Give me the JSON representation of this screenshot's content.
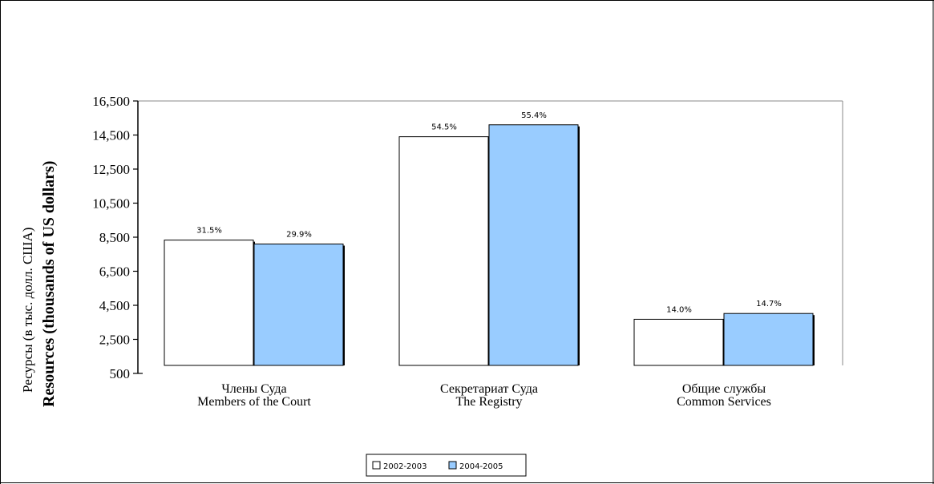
{
  "chart_data": {
    "type": "bar",
    "title": "",
    "ylabel_ru": "Ресурсы (в тыс. долл. США)",
    "ylabel_en": "Resources (thousands of US dollars)",
    "ylim": [
      500,
      16500
    ],
    "yticks": [
      500,
      2500,
      4500,
      6500,
      8500,
      10500,
      12500,
      14500,
      16500
    ],
    "ytick_labels": [
      "500",
      "2,500",
      "4,500",
      "6,500",
      "8,500",
      "10,500",
      "12,500",
      "14,500",
      "16,500"
    ],
    "categories": [
      {
        "ru": "Члены Суда",
        "en": "Members of the Court"
      },
      {
        "ru": "Секретариат Суда",
        "en": "The Registry"
      },
      {
        "ru": "Общие службы",
        "en": "Common Services"
      }
    ],
    "series": [
      {
        "name": "2002-2003",
        "color": "#ffffff",
        "values": [
          8330,
          14400,
          3680
        ],
        "labels": [
          "31.5%",
          "54.5%",
          "14.0%"
        ]
      },
      {
        "name": "2004-2005",
        "color": "#99ccff",
        "values": [
          8100,
          15100,
          4020
        ],
        "labels": [
          "29.9%",
          "55.4%",
          "14.7%"
        ]
      }
    ],
    "legend_position": "bottom-center",
    "grid": false
  }
}
